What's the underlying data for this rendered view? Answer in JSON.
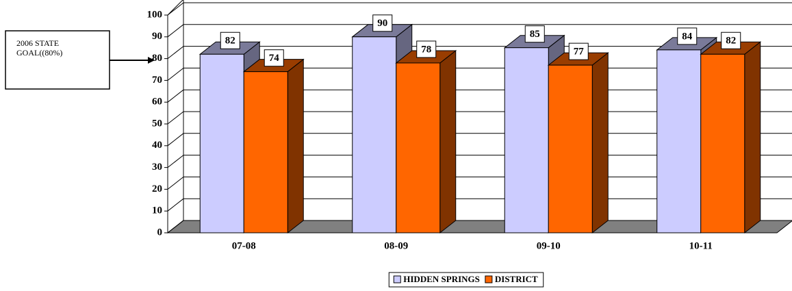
{
  "chart_data": {
    "type": "bar3d",
    "categories": [
      "07-08",
      "08-09",
      "09-10",
      "10-11"
    ],
    "series": [
      {
        "name": "HIDDEN SPRINGS",
        "color": "#ccccff",
        "values": [
          82,
          90,
          85,
          84
        ]
      },
      {
        "name": "DISTRICT",
        "color": "#ff6600",
        "values": [
          74,
          78,
          77,
          82
        ]
      }
    ],
    "ylim": [
      0,
      100
    ],
    "yticks": [
      0,
      10,
      20,
      30,
      40,
      50,
      60,
      70,
      80,
      90,
      100
    ],
    "grid": true,
    "legend": "bottom",
    "annotation": [
      "2006 STATE",
      "GOAL((80%)"
    ]
  }
}
